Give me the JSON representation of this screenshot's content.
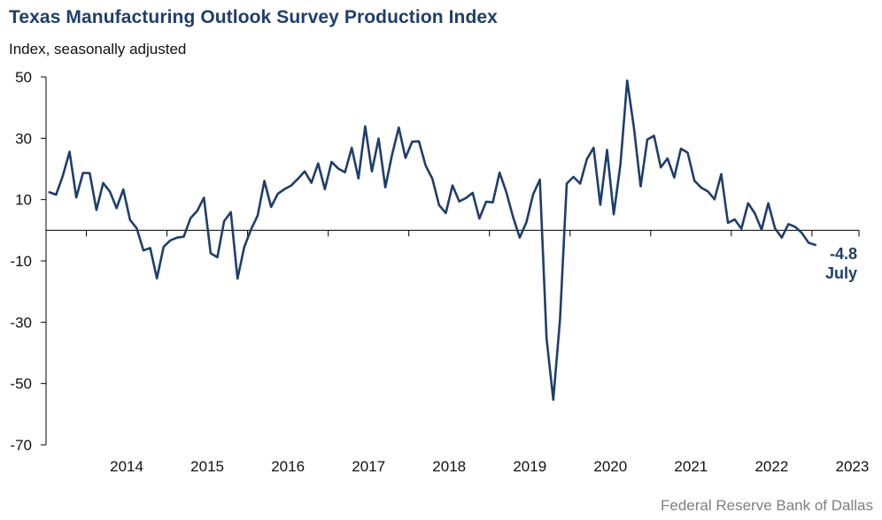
{
  "header": {
    "title": "Texas Manufacturing Outlook Survey Production Index",
    "subtitle": "Index, seasonally adjusted"
  },
  "source": "Federal Reserve Bank of Dallas",
  "chart_data": {
    "type": "line",
    "title": "Texas Manufacturing Outlook Survey Production Index",
    "ylabel": "Index, seasonally adjusted",
    "ylim": [
      -70,
      50
    ],
    "yticks": [
      50,
      30,
      10,
      -10,
      -30,
      -50,
      -70
    ],
    "xticks": [
      "2014",
      "2015",
      "2016",
      "2017",
      "2018",
      "2019",
      "2020",
      "2021",
      "2022",
      "2023"
    ],
    "x_start": "2013-07",
    "x_end": "2023-07",
    "series": [
      {
        "color": "#1f3e6b",
        "values": [
          12.4,
          11.6,
          17.8,
          25.6,
          10.7,
          18.7,
          18.6,
          6.6,
          15.4,
          12.6,
          7.2,
          13.3,
          3.4,
          0.6,
          -6.6,
          -5.8,
          -15.7,
          -5.4,
          -3.3,
          -2.4,
          -2.1,
          3.9,
          6.3,
          10.6,
          -7.5,
          -8.8,
          2.9,
          5.9,
          -15.8,
          -5.5,
          0.2,
          4.8,
          16.1,
          7.6,
          11.9,
          13.4,
          14.6,
          16.8,
          19.2,
          15.5,
          21.8,
          13.4,
          22.3,
          20.1,
          18.9,
          26.9,
          16.9,
          33.9,
          19.2,
          29.9,
          14.0,
          24.6,
          33.5,
          23.6,
          28.9,
          29.0,
          21.1,
          16.8,
          8.2,
          5.6,
          14.6,
          9.4,
          10.5,
          12.2,
          3.8,
          9.3,
          9.1,
          18.8,
          12.5,
          4.4,
          -2.4,
          2.6,
          11.7,
          16.5,
          -35.3,
          -55.3,
          -29.1,
          15.2,
          17.4,
          15.2,
          23.2,
          26.9,
          8.3,
          26.2,
          5.2,
          21.6,
          48.8,
          33.5,
          14.3,
          29.6,
          30.8,
          20.5,
          23.4,
          17.2,
          26.6,
          25.3,
          16.2,
          13.9,
          12.7,
          10.1,
          18.3,
          2.4,
          3.5,
          0.5,
          8.8,
          5.5,
          0.2,
          8.8,
          0.6,
          -2.4,
          2.0,
          1.1,
          -0.9,
          -4.1,
          -4.8
        ]
      }
    ],
    "annotation": {
      "value": "-4.8",
      "label": "July"
    }
  }
}
